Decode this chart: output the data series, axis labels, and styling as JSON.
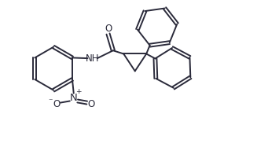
{
  "bg_color": "#ffffff",
  "line_color": "#2a2a3a",
  "line_width": 1.4,
  "font_size": 8.5,
  "figsize": [
    3.41,
    1.92
  ],
  "dpi": 100,
  "xlim": [
    0,
    9.5
  ],
  "ylim": [
    0,
    5.4
  ]
}
